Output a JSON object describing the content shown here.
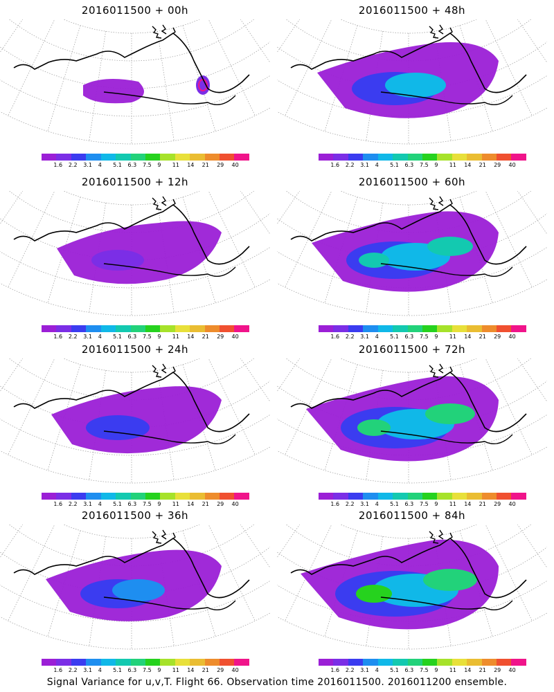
{
  "colorbar": {
    "colors": [
      "#9b1fd6",
      "#7b2ee6",
      "#3b3cf0",
      "#1e8ef0",
      "#10b8e8",
      "#13c9b0",
      "#22d27a",
      "#26d21e",
      "#a6e22a",
      "#e8e03a",
      "#eabd32",
      "#ee8c2c",
      "#f05030",
      "#f0148a"
    ],
    "labels": [
      "1.6",
      "2.2",
      "3.1",
      "4",
      "5.1",
      "6.3",
      "7.5",
      "9",
      "11",
      "14",
      "21",
      "29",
      "40"
    ]
  },
  "panels": [
    {
      "title": "2016011500 + 00h",
      "intensity": 0
    },
    {
      "title": "2016011500 + 48h",
      "intensity": 4
    },
    {
      "title": "2016011500 + 12h",
      "intensity": 1
    },
    {
      "title": "2016011500 + 60h",
      "intensity": 5
    },
    {
      "title": "2016011500 + 24h",
      "intensity": 2
    },
    {
      "title": "2016011500 + 72h",
      "intensity": 6
    },
    {
      "title": "2016011500 + 36h",
      "intensity": 3
    },
    {
      "title": "2016011500 + 84h",
      "intensity": 7
    }
  ],
  "footer": "Signal Variance for u,v,T. Flight 66. Observation time 2016011500. 2016011200 ensemble."
}
